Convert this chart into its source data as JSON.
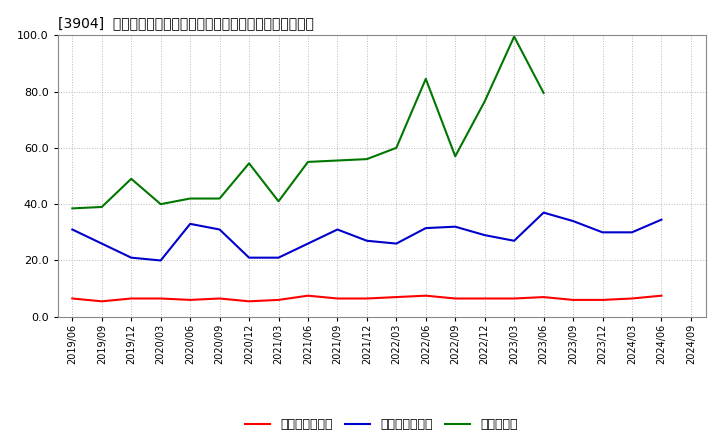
{
  "title": "[3904]  売上債権回転率、買入債務回転率、在庫回転率の推移",
  "x_labels": [
    "2019/06",
    "2019/09",
    "2019/12",
    "2020/03",
    "2020/06",
    "2020/09",
    "2020/12",
    "2021/03",
    "2021/06",
    "2021/09",
    "2021/12",
    "2022/03",
    "2022/06",
    "2022/09",
    "2022/12",
    "2023/03",
    "2023/06",
    "2023/09",
    "2023/12",
    "2024/03",
    "2024/06",
    "2024/09"
  ],
  "urikaekeiten": [
    6.5,
    5.5,
    6.5,
    6.5,
    6.0,
    6.5,
    5.5,
    6.0,
    7.5,
    6.5,
    6.5,
    7.0,
    7.5,
    6.5,
    6.5,
    6.5,
    7.0,
    6.0,
    6.0,
    6.5,
    7.5,
    null
  ],
  "kainyu": [
    31.0,
    26.0,
    21.0,
    20.0,
    33.0,
    31.0,
    21.0,
    21.0,
    26.0,
    31.0,
    27.0,
    26.0,
    31.5,
    32.0,
    29.0,
    27.0,
    37.0,
    34.0,
    30.0,
    30.0,
    34.5,
    null
  ],
  "zaiko": [
    38.5,
    39.0,
    49.0,
    40.0,
    42.0,
    42.0,
    54.5,
    41.0,
    55.0,
    55.5,
    56.0,
    60.0,
    84.5,
    57.0,
    76.5,
    99.5,
    79.5,
    null,
    null,
    null,
    null,
    null
  ],
  "urikaekeiten_color": "#ff0000",
  "kainyu_color": "#0000cc",
  "zaiko_color": "#007700",
  "urikaekeiten_label": "売上債権回転率",
  "kainyu_label": "買入債務回転率",
  "zaiko_label": "在庫回転率",
  "ylim": [
    0.0,
    100.0
  ],
  "yticks": [
    0.0,
    20.0,
    40.0,
    60.0,
    80.0,
    100.0
  ],
  "background_color": "#ffffff",
  "grid_color": "#aaaaaa"
}
